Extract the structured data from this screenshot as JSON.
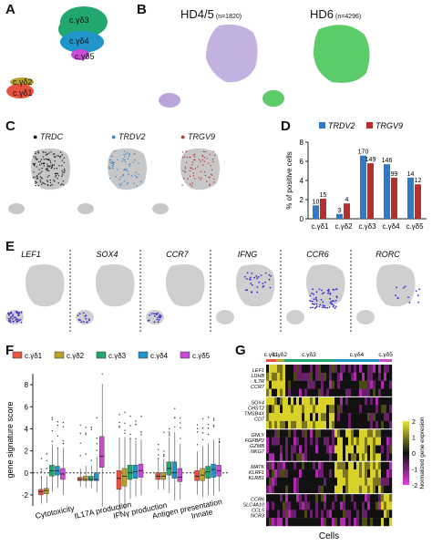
{
  "panels": {
    "A": {
      "letter": "A",
      "clusters": [
        "c.γδ3",
        "c.γδ4",
        "c.γδ5",
        "c.γδ2",
        "c.γδ1"
      ],
      "colors": {
        "c.γδ1": "#e8533f",
        "c.γδ2": "#b8a22a",
        "c.γδ3": "#22a86e",
        "c.γδ4": "#1f95c9",
        "c.γδ5": "#c94bd6"
      }
    },
    "B": {
      "letter": "B",
      "groups": [
        {
          "name": "HD4/5",
          "n": "(n=1820)",
          "color": "#b9a5db"
        },
        {
          "name": "HD6",
          "n": "(n=4296)",
          "color": "#5ccb6a"
        }
      ]
    },
    "C": {
      "letter": "C",
      "genes": [
        {
          "name": "TRDC",
          "color": "#1a1a1a"
        },
        {
          "name": "TRDV2",
          "color": "#3a86c8"
        },
        {
          "name": "TRGV9",
          "color": "#b33a3a"
        }
      ]
    },
    "D": {
      "letter": "D"
    },
    "E": {
      "letter": "E",
      "genes": [
        "LEF1",
        "SOX4",
        "CCR7",
        "IFNG",
        "CCR6",
        "RORC"
      ]
    },
    "F": {
      "letter": "F"
    },
    "G": {
      "letter": "G",
      "clusters": [
        "c.γδ1",
        "c.γδ2",
        "c.γδ3",
        "c.γδ4",
        "c.γδ5"
      ],
      "gene_groups": [
        [
          "LEF1",
          "LDHB",
          "IL7R",
          "CCR7"
        ],
        [
          "SOX4",
          "CHST2",
          "TMSB4X",
          "CD7"
        ],
        [
          "GNLY",
          "FGFBP2",
          "GZMB",
          "NKG7"
        ],
        [
          "MATK",
          "KLRF1",
          "KLRB1"
        ],
        [
          "CCR6",
          "SLC4A10",
          "CCL5",
          "NCR3"
        ]
      ],
      "xlabel": "Cells",
      "colorbar_label": "Normalized gene expresion",
      "colorbar_ticks": [
        "2",
        "1",
        "0",
        "-1",
        "-2"
      ]
    }
  },
  "chart_data": [
    {
      "type": "bar",
      "panel": "D",
      "categories": [
        "c.γδ1",
        "c.γδ2",
        "c.γδ3",
        "c.γδ4",
        "c.γδ5"
      ],
      "series": [
        {
          "name": "TRDV2",
          "color": "#2f79c6",
          "values": [
            1.4,
            0.5,
            6.6,
            5.7,
            4.3
          ],
          "labels": [
            "10",
            "3",
            "170",
            "146",
            "14"
          ]
        },
        {
          "name": "TRGV9",
          "color": "#b3302f",
          "values": [
            2.1,
            1.6,
            5.8,
            4.3,
            3.6
          ],
          "labels": [
            "15",
            "4",
            "149",
            "99",
            "12"
          ]
        }
      ],
      "ylabel": "% of positive cells",
      "ylim": [
        0,
        8
      ],
      "yticks": [
        "0",
        "2",
        "4",
        "6",
        "8"
      ],
      "legend": "top"
    },
    {
      "type": "box",
      "panel": "F",
      "ylabel": "gene signature score",
      "ylim": [
        -3,
        9
      ],
      "yticks": [
        "-2",
        "0",
        "2",
        "4",
        "6",
        "8"
      ],
      "legend_entries": [
        "c.γδ1",
        "c.γδ2",
        "c.γδ3",
        "c.γδ4",
        "c.γδ5"
      ],
      "colors": [
        "#e8533f",
        "#b8a22a",
        "#22a86e",
        "#1f95c9",
        "#c94bd6"
      ],
      "categories": [
        "Cytotoxicity",
        "IL17A production",
        "IFNγ production",
        "Antigen presentation",
        "Innate"
      ],
      "medians": [
        [
          -1.7,
          -1.6,
          0.2,
          0.2,
          -0.1
        ],
        [
          -0.6,
          -0.6,
          -0.6,
          -0.6,
          1.5
        ],
        [
          -0.5,
          -0.3,
          0.0,
          0.1,
          0.2
        ],
        [
          -0.3,
          -0.3,
          0.4,
          0.0,
          -0.4
        ],
        [
          -0.3,
          -0.2,
          0.1,
          0.3,
          0.2
        ]
      ],
      "q1": [
        [
          -2.0,
          -1.9,
          -0.3,
          -0.2,
          -0.6
        ],
        [
          -0.7,
          -0.7,
          -0.7,
          -0.7,
          0.5
        ],
        [
          -1.5,
          -1.2,
          -0.6,
          -0.5,
          -0.4
        ],
        [
          -0.6,
          -0.6,
          -0.2,
          -0.5,
          -0.8
        ],
        [
          -0.7,
          -0.7,
          -0.5,
          -0.4,
          -0.3
        ]
      ],
      "q3": [
        [
          -1.5,
          -1.4,
          0.7,
          0.6,
          0.4
        ],
        [
          -0.4,
          -0.3,
          -0.3,
          0.0,
          3.3
        ],
        [
          0.2,
          0.4,
          0.7,
          0.7,
          0.8
        ],
        [
          0.0,
          0.0,
          1.0,
          1.0,
          0.4
        ],
        [
          0.2,
          0.4,
          0.6,
          0.8,
          0.7
        ]
      ]
    }
  ]
}
